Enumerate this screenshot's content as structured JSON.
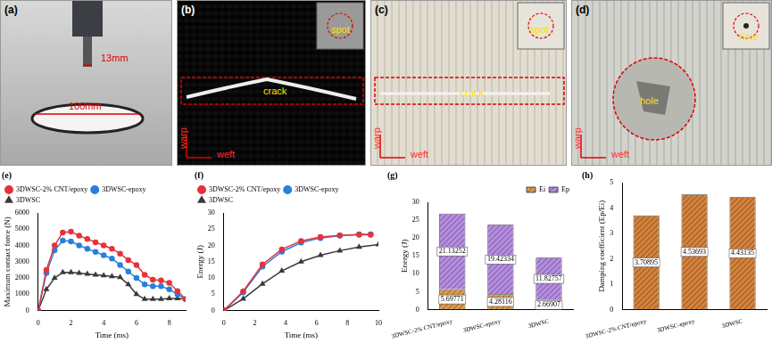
{
  "panels": [
    {
      "label": "(a)",
      "annotations": [
        "13mm",
        "100mm"
      ]
    },
    {
      "label": "(b)",
      "annotations": [
        "spot",
        "crack",
        "warp",
        "weft"
      ]
    },
    {
      "label": "(c)",
      "annotations": [
        "spot",
        "crack",
        "warp",
        "weft"
      ]
    },
    {
      "label": "(d)",
      "annotations": [
        "hole",
        "hole",
        "warp",
        "weft"
      ]
    }
  ],
  "chart_data": [
    {
      "title": "(e)",
      "type": "line",
      "x_label": "Time (ms)",
      "y_label": "Maximum contact force (N)",
      "xlim": [
        0,
        9
      ],
      "xticks": [
        0,
        2,
        4,
        6,
        8
      ],
      "ylim": [
        0,
        6000
      ],
      "yticks": [
        0,
        1000,
        2000,
        3000,
        4000,
        5000,
        6000
      ],
      "grid": false,
      "legend": "top",
      "series": [
        {
          "name": "3DWSC-2% CNT/epoxy",
          "color": "#e8323a",
          "marker": "circle",
          "x": [
            0,
            0.5,
            1,
            1.5,
            2,
            2.5,
            3,
            3.5,
            4,
            4.5,
            5,
            5.5,
            6,
            6.5,
            7,
            7.5,
            8,
            8.5,
            9
          ],
          "values": [
            0,
            2500,
            4000,
            4800,
            4850,
            4600,
            4400,
            4200,
            4000,
            3800,
            3500,
            3100,
            2800,
            2200,
            1900,
            1850,
            1700,
            1200,
            700
          ]
        },
        {
          "name": "3DWSC-epoxy",
          "color": "#2a7fdc",
          "marker": "circle",
          "x": [
            0,
            0.5,
            1,
            1.5,
            2,
            2.5,
            3,
            3.5,
            4,
            4.5,
            5,
            5.5,
            6,
            6.5,
            7,
            7.5,
            8,
            8.5,
            9
          ],
          "values": [
            0,
            2300,
            3700,
            4300,
            4250,
            4000,
            3800,
            3600,
            3400,
            3200,
            2800,
            2400,
            2000,
            1600,
            1500,
            1500,
            1300,
            1000,
            700
          ]
        },
        {
          "name": "3DWSC",
          "color": "#3a3a3a",
          "marker": "triangle",
          "x": [
            0,
            0.5,
            1,
            1.5,
            2,
            2.5,
            3,
            3.5,
            4,
            4.5,
            5,
            5.5,
            6,
            6.5,
            7,
            7.5,
            8,
            8.5,
            9
          ],
          "values": [
            0,
            1300,
            2000,
            2350,
            2350,
            2300,
            2250,
            2200,
            2150,
            2100,
            2050,
            1600,
            1000,
            700,
            700,
            700,
            750,
            750,
            700
          ]
        }
      ]
    },
    {
      "title": "(f)",
      "type": "line",
      "x_label": "Time (ms)",
      "y_label": "Energy (J)",
      "xlim": [
        0,
        10
      ],
      "xticks": [
        0,
        2,
        4,
        6,
        8,
        10
      ],
      "ylim": [
        0,
        30
      ],
      "yticks": [
        0,
        5,
        10,
        15,
        20,
        25,
        30
      ],
      "grid": false,
      "legend": "top",
      "series": [
        {
          "name": "3DWSC-2% CNT/epoxy",
          "color": "#e8323a",
          "marker": "circle",
          "x": [
            0,
            1.25,
            2.5,
            3.75,
            5,
            6.25,
            7.5,
            8.75,
            9.5
          ],
          "values": [
            0,
            5.9,
            14.2,
            18.8,
            21.4,
            22.6,
            23.1,
            23.3,
            23.3
          ]
        },
        {
          "name": "3DWSC-epoxy",
          "color": "#2a7fdc",
          "marker": "circle",
          "x": [
            0,
            1.25,
            2.5,
            3.75,
            5,
            6.25,
            7.5,
            8.75,
            9.5
          ],
          "values": [
            0,
            5.6,
            13.5,
            18.1,
            20.9,
            22.3,
            23.0,
            23.4,
            23.4
          ]
        },
        {
          "name": "3DWSC",
          "color": "#3a3a3a",
          "marker": "triangle",
          "x": [
            0,
            1.25,
            2.5,
            3.75,
            5,
            6.25,
            7.5,
            8.75,
            10
          ],
          "values": [
            0,
            3.6,
            8.2,
            12.2,
            15.0,
            17.0,
            18.4,
            19.5,
            20.3
          ]
        }
      ]
    },
    {
      "title": "(g)",
      "type": "bar",
      "stacked": true,
      "y_label": "Energy (J)",
      "categories": [
        "3DWSC-2% CNT/epoxy",
        "3DWSC-epoxy",
        "3DWSC"
      ],
      "ylim": [
        0,
        30
      ],
      "yticks": [
        0,
        5,
        10,
        15,
        20,
        25,
        30
      ],
      "grid": false,
      "legend": "top",
      "data_labels": true,
      "series": [
        {
          "name": "Ei",
          "color": "#d99a4e",
          "values": [
            5.69771,
            4.28116,
            2.66907
          ]
        },
        {
          "name": "Ep",
          "color": "#b48be0",
          "values": [
            21.13252,
            19.42334,
            11.82757
          ]
        }
      ]
    },
    {
      "title": "(h)",
      "type": "bar",
      "y_label": "Damping coefficient (Ep/Ei)",
      "categories": [
        "3DWSC-2% CNT/epoxy",
        "3DWSC-epoxy",
        "3DWSC"
      ],
      "values": [
        3.70895,
        4.53693,
        4.43135
      ],
      "color": "#d2803a",
      "ylim": [
        0,
        5
      ],
      "yticks": [
        0,
        1,
        2,
        3,
        4,
        5
      ],
      "grid": false,
      "data_labels": true
    }
  ]
}
